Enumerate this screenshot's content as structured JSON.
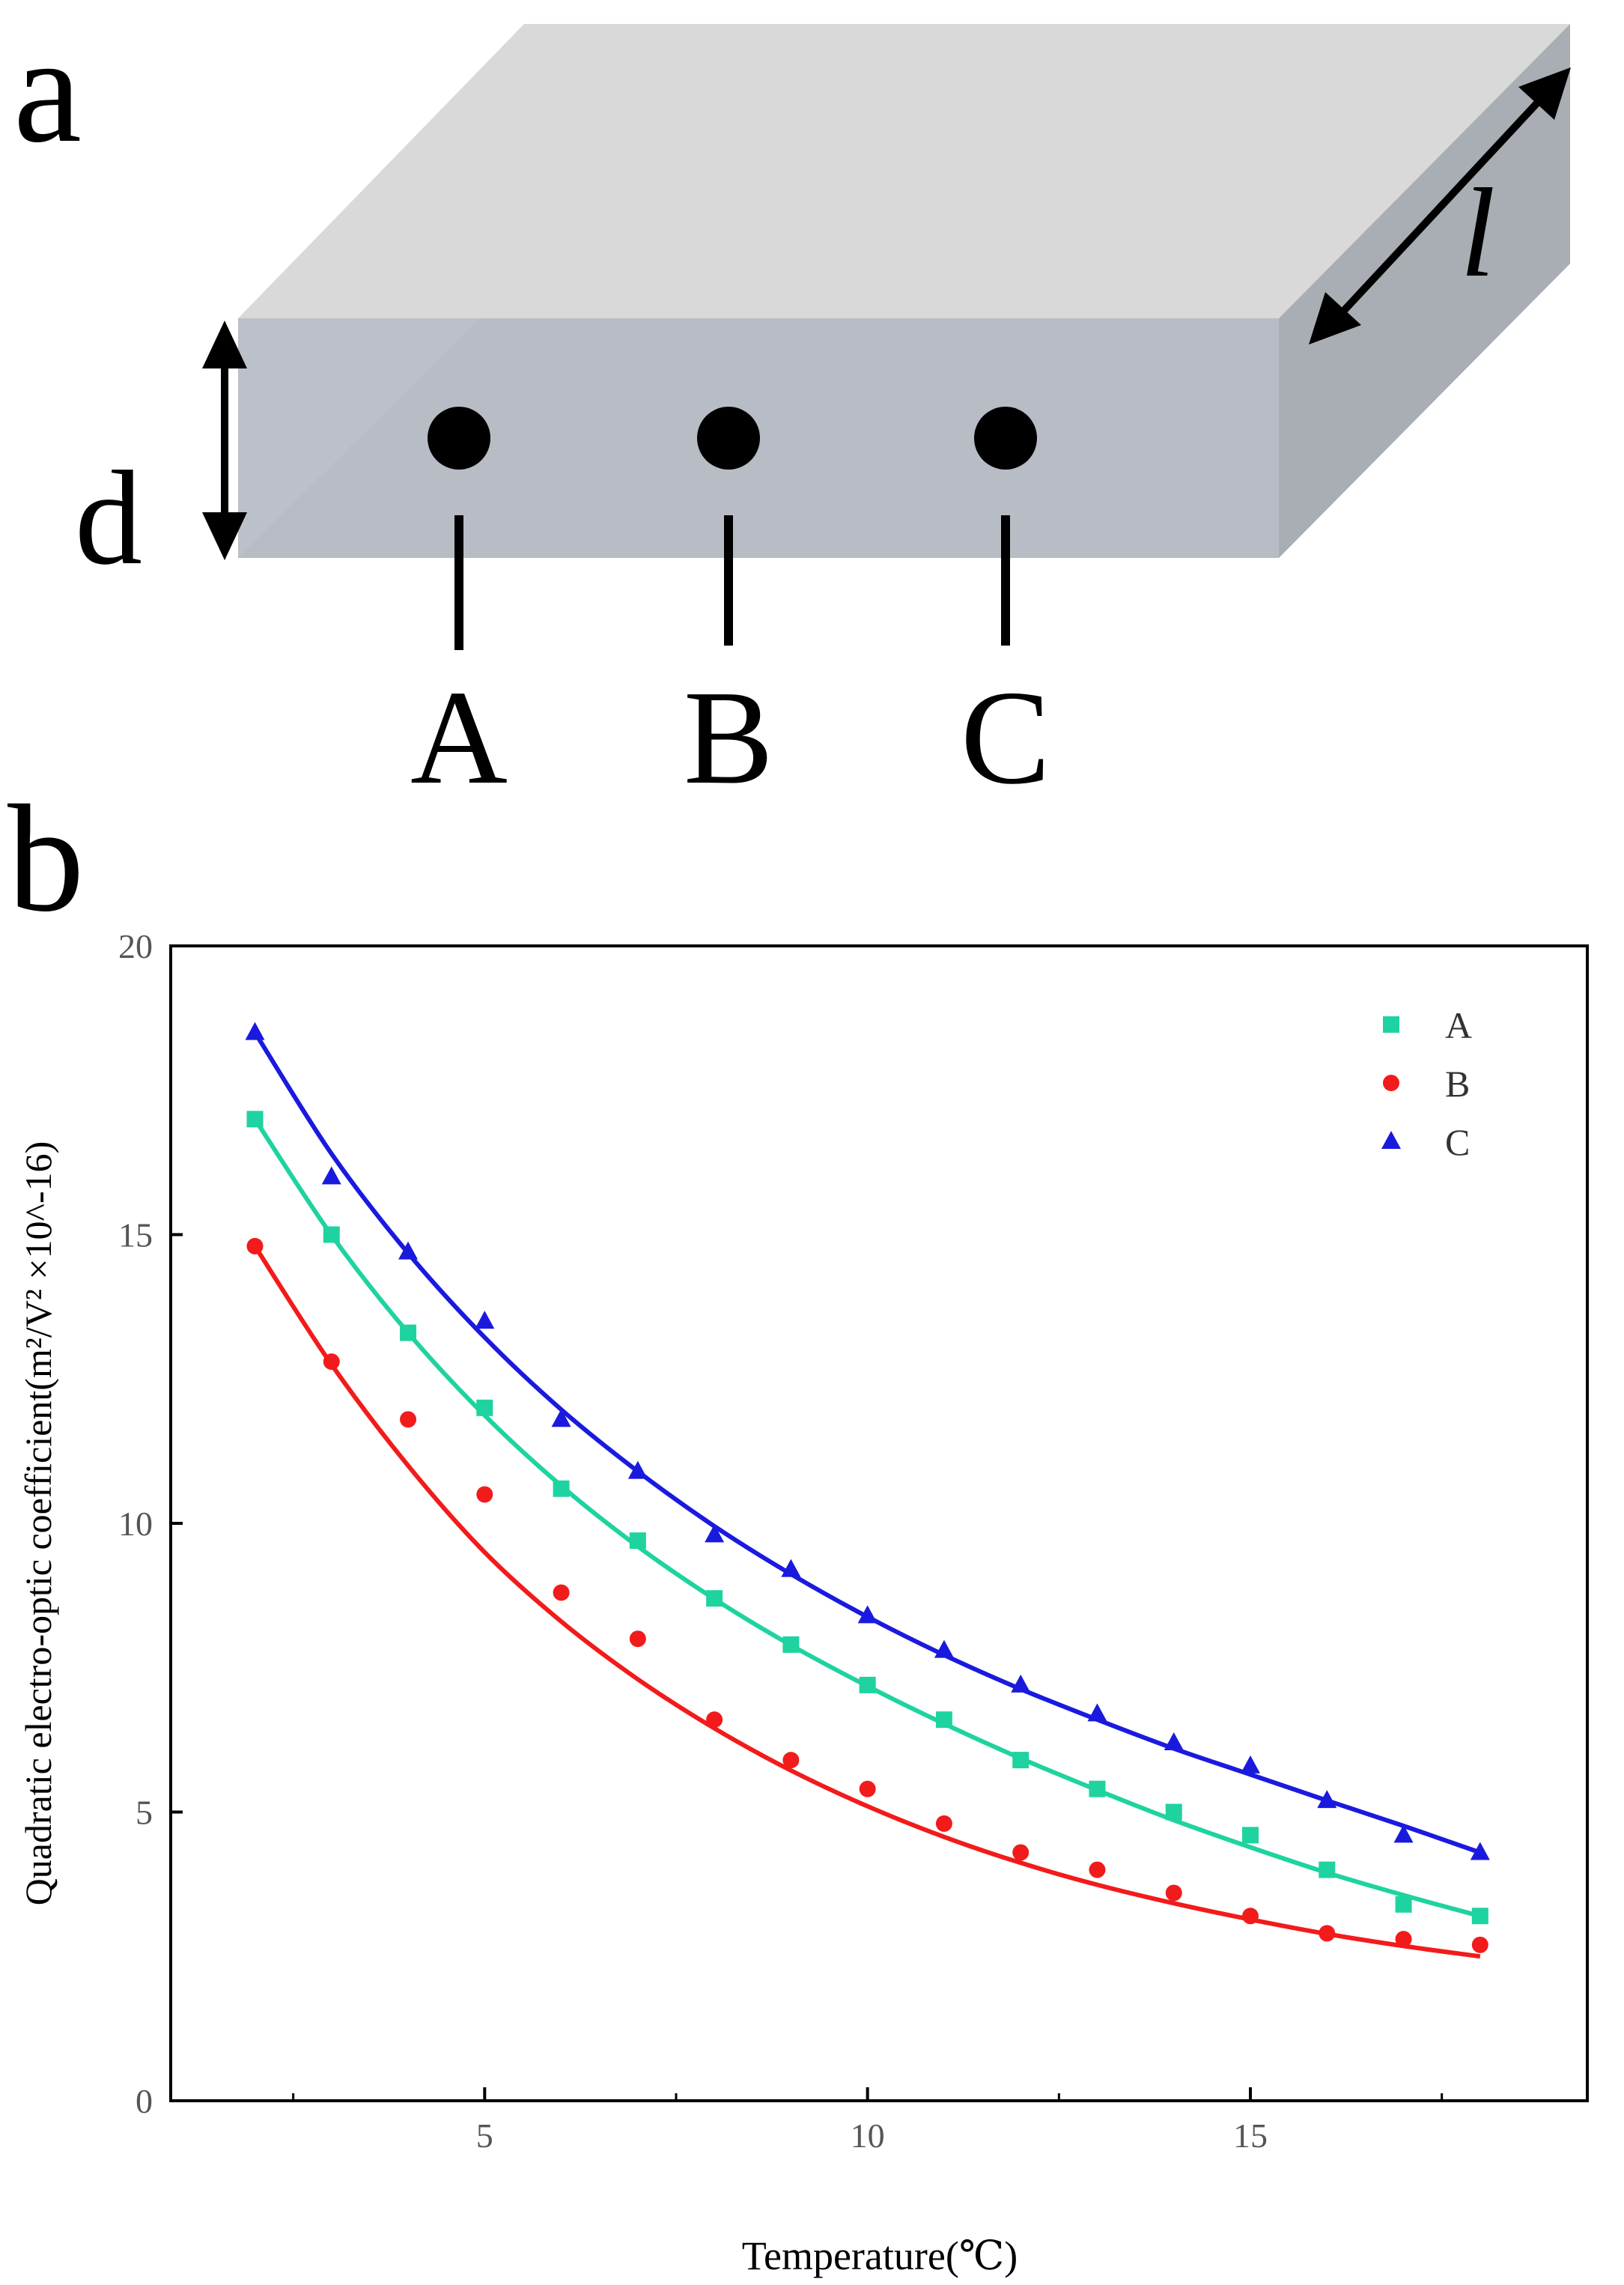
{
  "panel_a": {
    "label": "a",
    "thickness_label": "d",
    "length_label": "l",
    "points": [
      "A",
      "B",
      "C"
    ]
  },
  "panel_b": {
    "label": "b"
  },
  "colors": {
    "A": "#1fd3a0",
    "B": "#f21b1b",
    "C": "#1a1adf",
    "slab_top": "#d9d9d9",
    "slab_front": "#bcc0c8",
    "slab_side": "#a9adb4"
  },
  "chart_data": {
    "type": "scatter",
    "title": "",
    "xlabel": "Temperature(℃)",
    "ylabel": "Quadratic electro-optic coefficient(m²/V² ×10^-16)",
    "xlim": [
      0.9,
      19.4
    ],
    "ylim": [
      0,
      20
    ],
    "xticks": [
      5,
      10,
      15
    ],
    "yticks": [
      0,
      5,
      10,
      15,
      20
    ],
    "x_minor_ticks": [
      2.5,
      7.5,
      12.5,
      17.5
    ],
    "legend_position": "top-right",
    "grid": false,
    "x": [
      2,
      3,
      4,
      5,
      6,
      7,
      8,
      9,
      10,
      11,
      12,
      13,
      14,
      15,
      16,
      17,
      18
    ],
    "series": [
      {
        "name": "A",
        "marker": "square",
        "values": [
          17.0,
          15.0,
          13.3,
          12.0,
          10.6,
          9.7,
          8.7,
          7.9,
          7.2,
          6.6,
          5.9,
          5.4,
          5.0,
          4.6,
          4.0,
          3.4,
          3.2
        ],
        "fit": [
          17.0,
          14.99,
          13.3,
          11.87,
          10.65,
          9.6,
          8.69,
          7.89,
          7.18,
          6.53,
          5.93,
          5.38,
          4.86,
          4.39,
          3.95,
          3.56,
          3.2
        ]
      },
      {
        "name": "B",
        "marker": "circle",
        "values": [
          14.8,
          12.8,
          11.8,
          10.5,
          8.8,
          8.0,
          6.6,
          5.9,
          5.4,
          4.8,
          4.3,
          4.0,
          3.6,
          3.2,
          2.9,
          2.8,
          2.7
        ],
        "fit": [
          14.8,
          12.75,
          11.0,
          9.5,
          8.3,
          7.3,
          6.45,
          5.72,
          5.1,
          4.57,
          4.12,
          3.74,
          3.42,
          3.14,
          2.89,
          2.68,
          2.5
        ]
      },
      {
        "name": "C",
        "marker": "triangle",
        "values": [
          18.5,
          16.0,
          14.7,
          13.5,
          11.8,
          10.9,
          9.8,
          9.2,
          8.4,
          7.8,
          7.2,
          6.7,
          6.2,
          5.8,
          5.2,
          4.6,
          4.3
        ],
        "fit": [
          18.5,
          16.4,
          14.68,
          13.22,
          11.97,
          10.9,
          9.95,
          9.12,
          8.38,
          7.72,
          7.13,
          6.6,
          6.1,
          5.65,
          5.2,
          4.76,
          4.3
        ]
      }
    ]
  }
}
